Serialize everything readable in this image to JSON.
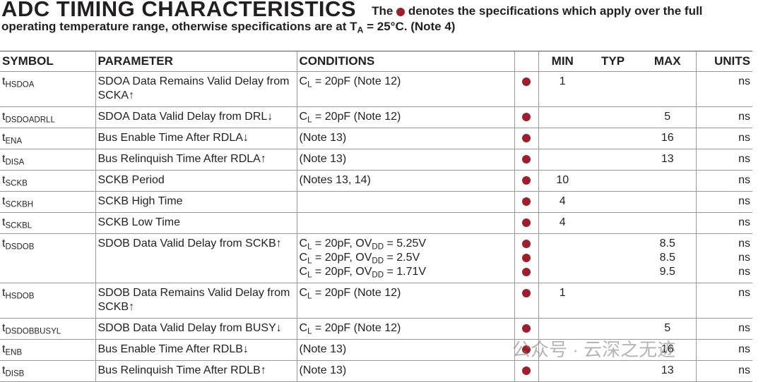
{
  "header": {
    "title": "ADC TIMING CHARACTERISTICS",
    "note": [
      "The",
      "denotes the specifications which apply over the full operating temperature range, otherwise specifications are at T",
      "A",
      " = 25°C. (Note 4)"
    ]
  },
  "table": {
    "columns": [
      "SYMBOL",
      "PARAMETER",
      "CONDITIONS",
      "MIN",
      "TYP",
      "MAX",
      "UNITS"
    ],
    "rows": [
      {
        "symbol": {
          "base": "t",
          "sub": "HSDOA"
        },
        "parameter": "SDOA Data Remains Valid Delay from SCKA↑",
        "lines": [
          {
            "conditions": [
              "C",
              "L",
              " = 20pF (Note 12)"
            ],
            "min": 1,
            "units": "ns"
          }
        ]
      },
      {
        "symbol": {
          "base": "t",
          "sub": "DSDOADRLL"
        },
        "parameter": "SDOA Data Valid Delay from DRL↓",
        "lines": [
          {
            "conditions": [
              "C",
              "L",
              " = 20pF (Note 12)"
            ],
            "max": 5,
            "units": "ns"
          }
        ]
      },
      {
        "symbol": {
          "base": "t",
          "sub": "ENA"
        },
        "parameter": "Bus Enable Time After RDLA↓",
        "lines": [
          {
            "conditions": [
              "(Note 13)"
            ],
            "max": 16,
            "units": "ns"
          }
        ]
      },
      {
        "symbol": {
          "base": "t",
          "sub": "DISA"
        },
        "parameter": "Bus Relinquish Time After RDLA↑",
        "lines": [
          {
            "conditions": [
              "(Note 13)"
            ],
            "max": 13,
            "units": "ns"
          }
        ]
      },
      {
        "symbol": {
          "base": "t",
          "sub": "SCKB"
        },
        "parameter": "SCKB Period",
        "lines": [
          {
            "conditions": [
              "(Notes 13, 14)"
            ],
            "min": 10,
            "units": "ns"
          }
        ]
      },
      {
        "symbol": {
          "base": "t",
          "sub": "SCKBH"
        },
        "parameter": "SCKB High Time",
        "lines": [
          {
            "min": 4,
            "units": "ns"
          }
        ]
      },
      {
        "symbol": {
          "base": "t",
          "sub": "SCKBL"
        },
        "parameter": "SCKB Low Time",
        "lines": [
          {
            "min": 4,
            "units": "ns"
          }
        ]
      },
      {
        "symbol": {
          "base": "t",
          "sub": "DSDOB"
        },
        "parameter": "SDOB Data Valid Delay from SCKB↑",
        "lines": [
          {
            "conditions": [
              "C",
              "L",
              " = 20pF, OV",
              "DD",
              " = 5.25V"
            ],
            "max": 8.5,
            "units": "ns"
          },
          {
            "conditions": [
              "C",
              "L",
              " = 20pF, OV",
              "DD",
              " = 2.5V"
            ],
            "max": 8.5,
            "units": "ns"
          },
          {
            "conditions": [
              "C",
              "L",
              " = 20pF, OV",
              "DD",
              " = 1.71V"
            ],
            "max": 9.5,
            "units": "ns"
          }
        ]
      },
      {
        "symbol": {
          "base": "t",
          "sub": "HSDOB"
        },
        "parameter": "SDOB Data Remains Valid Delay from SCKB↑",
        "lines": [
          {
            "conditions": [
              "C",
              "L",
              " = 20pF (Note 12)"
            ],
            "min": 1,
            "units": "ns"
          }
        ]
      },
      {
        "symbol": {
          "base": "t",
          "sub": "DSDOBBUSYL"
        },
        "parameter": "SDOB Data Valid Delay from BUSY↓",
        "lines": [
          {
            "conditions": [
              "C",
              "L",
              " = 20pF (Note 12)"
            ],
            "max": 5,
            "units": "ns"
          }
        ]
      },
      {
        "symbol": {
          "base": "t",
          "sub": "ENB"
        },
        "parameter": "Bus Enable Time After RDLB↓",
        "lines": [
          {
            "conditions": [
              "(Note 13)"
            ],
            "max": 16,
            "units": "ns"
          }
        ]
      },
      {
        "symbol": {
          "base": "t",
          "sub": "DISB"
        },
        "parameter": "Bus Relinquish Time After RDLB↑",
        "lines": [
          {
            "conditions": [
              "(Note 13)"
            ],
            "max": 13,
            "units": "ns"
          }
        ]
      }
    ]
  },
  "watermark": "公众号 · 云深之无迹"
}
